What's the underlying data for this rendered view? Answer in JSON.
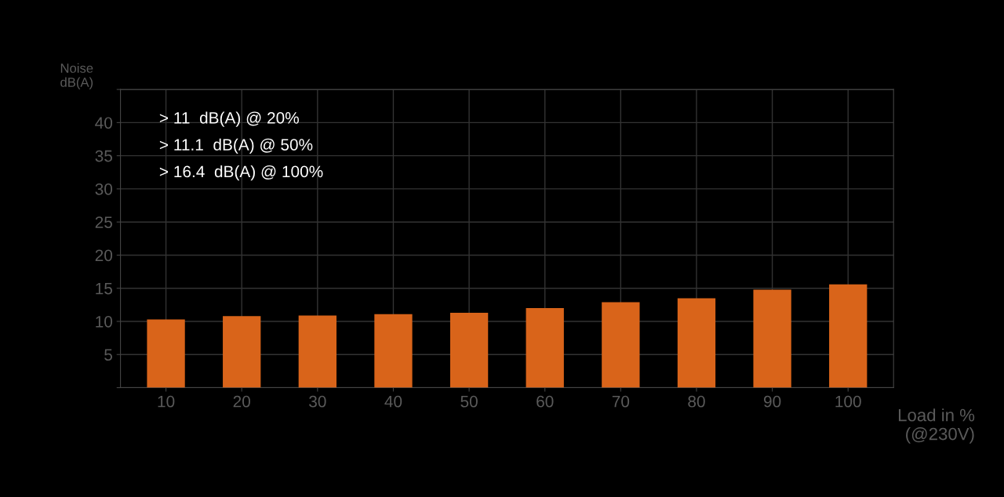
{
  "chart_data": {
    "type": "bar",
    "categories": [
      "10",
      "20",
      "30",
      "40",
      "50",
      "60",
      "70",
      "80",
      "90",
      "100"
    ],
    "values": [
      10.3,
      10.8,
      10.9,
      11.1,
      11.3,
      12.0,
      12.9,
      13.5,
      14.8,
      15.6
    ],
    "color": "#d9641a",
    "ylabel": "Noise\ndB(A)",
    "xlabel": "Load in %\n(@230V)",
    "ylim": [
      0,
      45
    ],
    "yticks": [
      {
        "value": 0,
        "label": null
      },
      5,
      10,
      15,
      20,
      25,
      30,
      35,
      40,
      {
        "value": 45,
        "label": null
      }
    ],
    "grid": true,
    "annotations": [
      "> 11  dB(A) @ 20%",
      "> 11.1  dB(A) @ 50%",
      "> 16.4  dB(A) @ 100%"
    ]
  }
}
